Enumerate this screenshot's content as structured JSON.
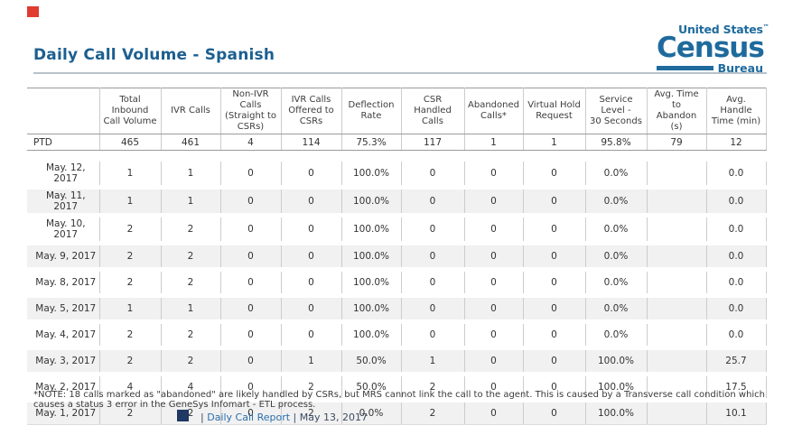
{
  "page": {
    "title": "Daily Call Volume - Spanish"
  },
  "logo": {
    "top": "United States",
    "tm": "™",
    "main": "Census",
    "bottom": "Bureau"
  },
  "icons": {
    "red_square": "red-square-placeholder",
    "navy_square": "navy-square-placeholder"
  },
  "colors": {
    "title_blue": "#1c5f90",
    "brand_blue": "#1e6a9d",
    "link_blue": "#2a6fad",
    "red_square": "#e03c31",
    "navy_square": "#1f3864",
    "row_alt_bg": "#f1f1f1",
    "strong_border": "#9b9b9b",
    "divider": "#cccccc"
  },
  "table": {
    "columns": [
      "",
      "Total Inbound\nCall Volume",
      "IVR Calls",
      "Non-IVR Calls\n(Straight to\nCSRs)",
      "IVR Calls\nOffered to CSRs",
      "Deflection Rate",
      "CSR Handled\nCalls",
      "Abandoned\nCalls*",
      "Virtual Hold\nRequest",
      "Service Level -\n30 Seconds",
      "Avg. Time to\nAbandon (s)",
      "Avg. Handle\nTime (min)"
    ],
    "ptd_row": [
      "PTD",
      "465",
      "461",
      "4",
      "114",
      "75.3%",
      "117",
      "1",
      "1",
      "95.8%",
      "79",
      "12"
    ],
    "rows": [
      [
        "May. 12, 2017",
        "1",
        "1",
        "0",
        "0",
        "100.0%",
        "0",
        "0",
        "0",
        "0.0%",
        "",
        "0.0"
      ],
      [
        "May. 11, 2017",
        "1",
        "1",
        "0",
        "0",
        "100.0%",
        "0",
        "0",
        "0",
        "0.0%",
        "",
        "0.0"
      ],
      [
        "May. 10, 2017",
        "2",
        "2",
        "0",
        "0",
        "100.0%",
        "0",
        "0",
        "0",
        "0.0%",
        "",
        "0.0"
      ],
      [
        "May. 9, 2017",
        "2",
        "2",
        "0",
        "0",
        "100.0%",
        "0",
        "0",
        "0",
        "0.0%",
        "",
        "0.0"
      ],
      [
        "May. 8, 2017",
        "2",
        "2",
        "0",
        "0",
        "100.0%",
        "0",
        "0",
        "0",
        "0.0%",
        "",
        "0.0"
      ],
      [
        "May. 5, 2017",
        "1",
        "1",
        "0",
        "0",
        "100.0%",
        "0",
        "0",
        "0",
        "0.0%",
        "",
        "0.0"
      ],
      [
        "May. 4, 2017",
        "2",
        "2",
        "0",
        "0",
        "100.0%",
        "0",
        "0",
        "0",
        "0.0%",
        "",
        "0.0"
      ],
      [
        "May. 3, 2017",
        "2",
        "2",
        "0",
        "1",
        "50.0%",
        "1",
        "0",
        "0",
        "100.0%",
        "",
        "25.7"
      ],
      [
        "May. 2, 2017",
        "4",
        "4",
        "0",
        "2",
        "50.0%",
        "2",
        "0",
        "0",
        "100.0%",
        "",
        "17.5"
      ],
      [
        "May. 1, 2017",
        "2",
        "2",
        "0",
        "2",
        "0.0%",
        "2",
        "0",
        "0",
        "100.0%",
        "",
        "10.1"
      ]
    ],
    "note": "*NOTE: 18 calls marked as \"abandoned\" are likely handled by CSRs, but MRS cannot link the call to the agent. This is caused by a Transverse call condition which causes a status 3 error in the GeneSys Infomart - ETL process."
  },
  "footer": {
    "pipe1": "|",
    "link": "Daily Call Report",
    "pipe2": "|",
    "date": "May 13, 2017"
  }
}
